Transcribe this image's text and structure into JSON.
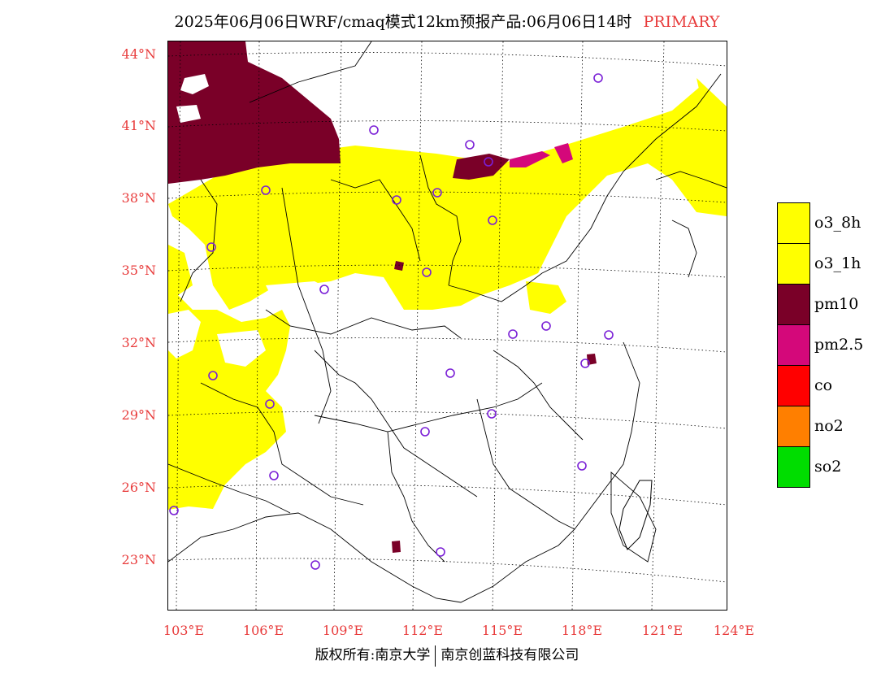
{
  "title": {
    "main": "2025年06月06日WRF/cmaq模式12km预报产品:06月06日14时",
    "tag": "PRIMARY",
    "tag_color": "#e83b3b"
  },
  "lat_labels": [
    "44°N",
    "41°N",
    "38°N",
    "35°N",
    "32°N",
    "29°N",
    "26°N",
    "23°N"
  ],
  "lon_labels": [
    "103°E",
    "106°E",
    "109°E",
    "112°E",
    "115°E",
    "118°E",
    "121°E",
    "124°E"
  ],
  "legend": [
    {
      "label": "o3_8h",
      "color": "#ffff00"
    },
    {
      "label": "o3_1h",
      "color": "#ffff00"
    },
    {
      "label": "pm10",
      "color": "#7a0028"
    },
    {
      "label": "pm2.5",
      "color": "#d4087a"
    },
    {
      "label": "co",
      "color": "#ff0000"
    },
    {
      "label": "no2",
      "color": "#ff7f00"
    },
    {
      "label": "so2",
      "color": "#00dd00"
    }
  ],
  "footer": {
    "left": "版权所有:南京大学",
    "right": "南京创蓝科技有限公司"
  }
}
